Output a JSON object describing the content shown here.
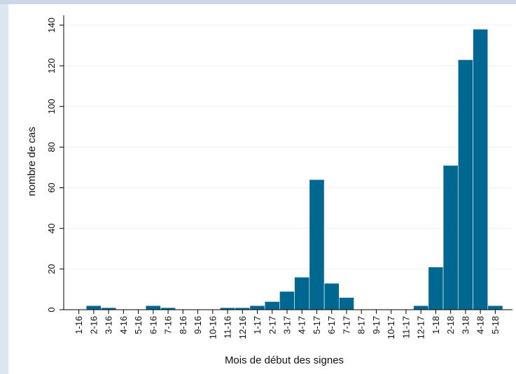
{
  "chart_data": {
    "type": "bar",
    "xlabel": "Mois de début des signes",
    "ylabel": "nombre de cas",
    "ylim": [
      0,
      140
    ],
    "yticks": [
      0,
      20,
      40,
      60,
      80,
      100,
      120,
      140
    ],
    "grid": true,
    "bar_color": "#006890",
    "categories": [
      "1-16",
      "2-16",
      "3-16",
      "4-16",
      "5-16",
      "6-16",
      "7-16",
      "8-16",
      "9-16",
      "10-16",
      "11-16",
      "12-16",
      "1-17",
      "2-17",
      "3-17",
      "4-17",
      "5-17",
      "6-17",
      "7-17",
      "8-17",
      "9-17",
      "10-17",
      "11-17",
      "12-17",
      "1-18",
      "2-18",
      "3-18",
      "4-18",
      "5-18"
    ],
    "values": [
      0,
      2,
      1,
      0,
      0,
      2,
      1,
      0,
      0,
      0,
      1,
      1,
      2,
      4,
      9,
      16,
      64,
      13,
      6,
      0,
      0,
      0,
      0,
      2,
      21,
      71,
      123,
      138,
      2
    ]
  }
}
